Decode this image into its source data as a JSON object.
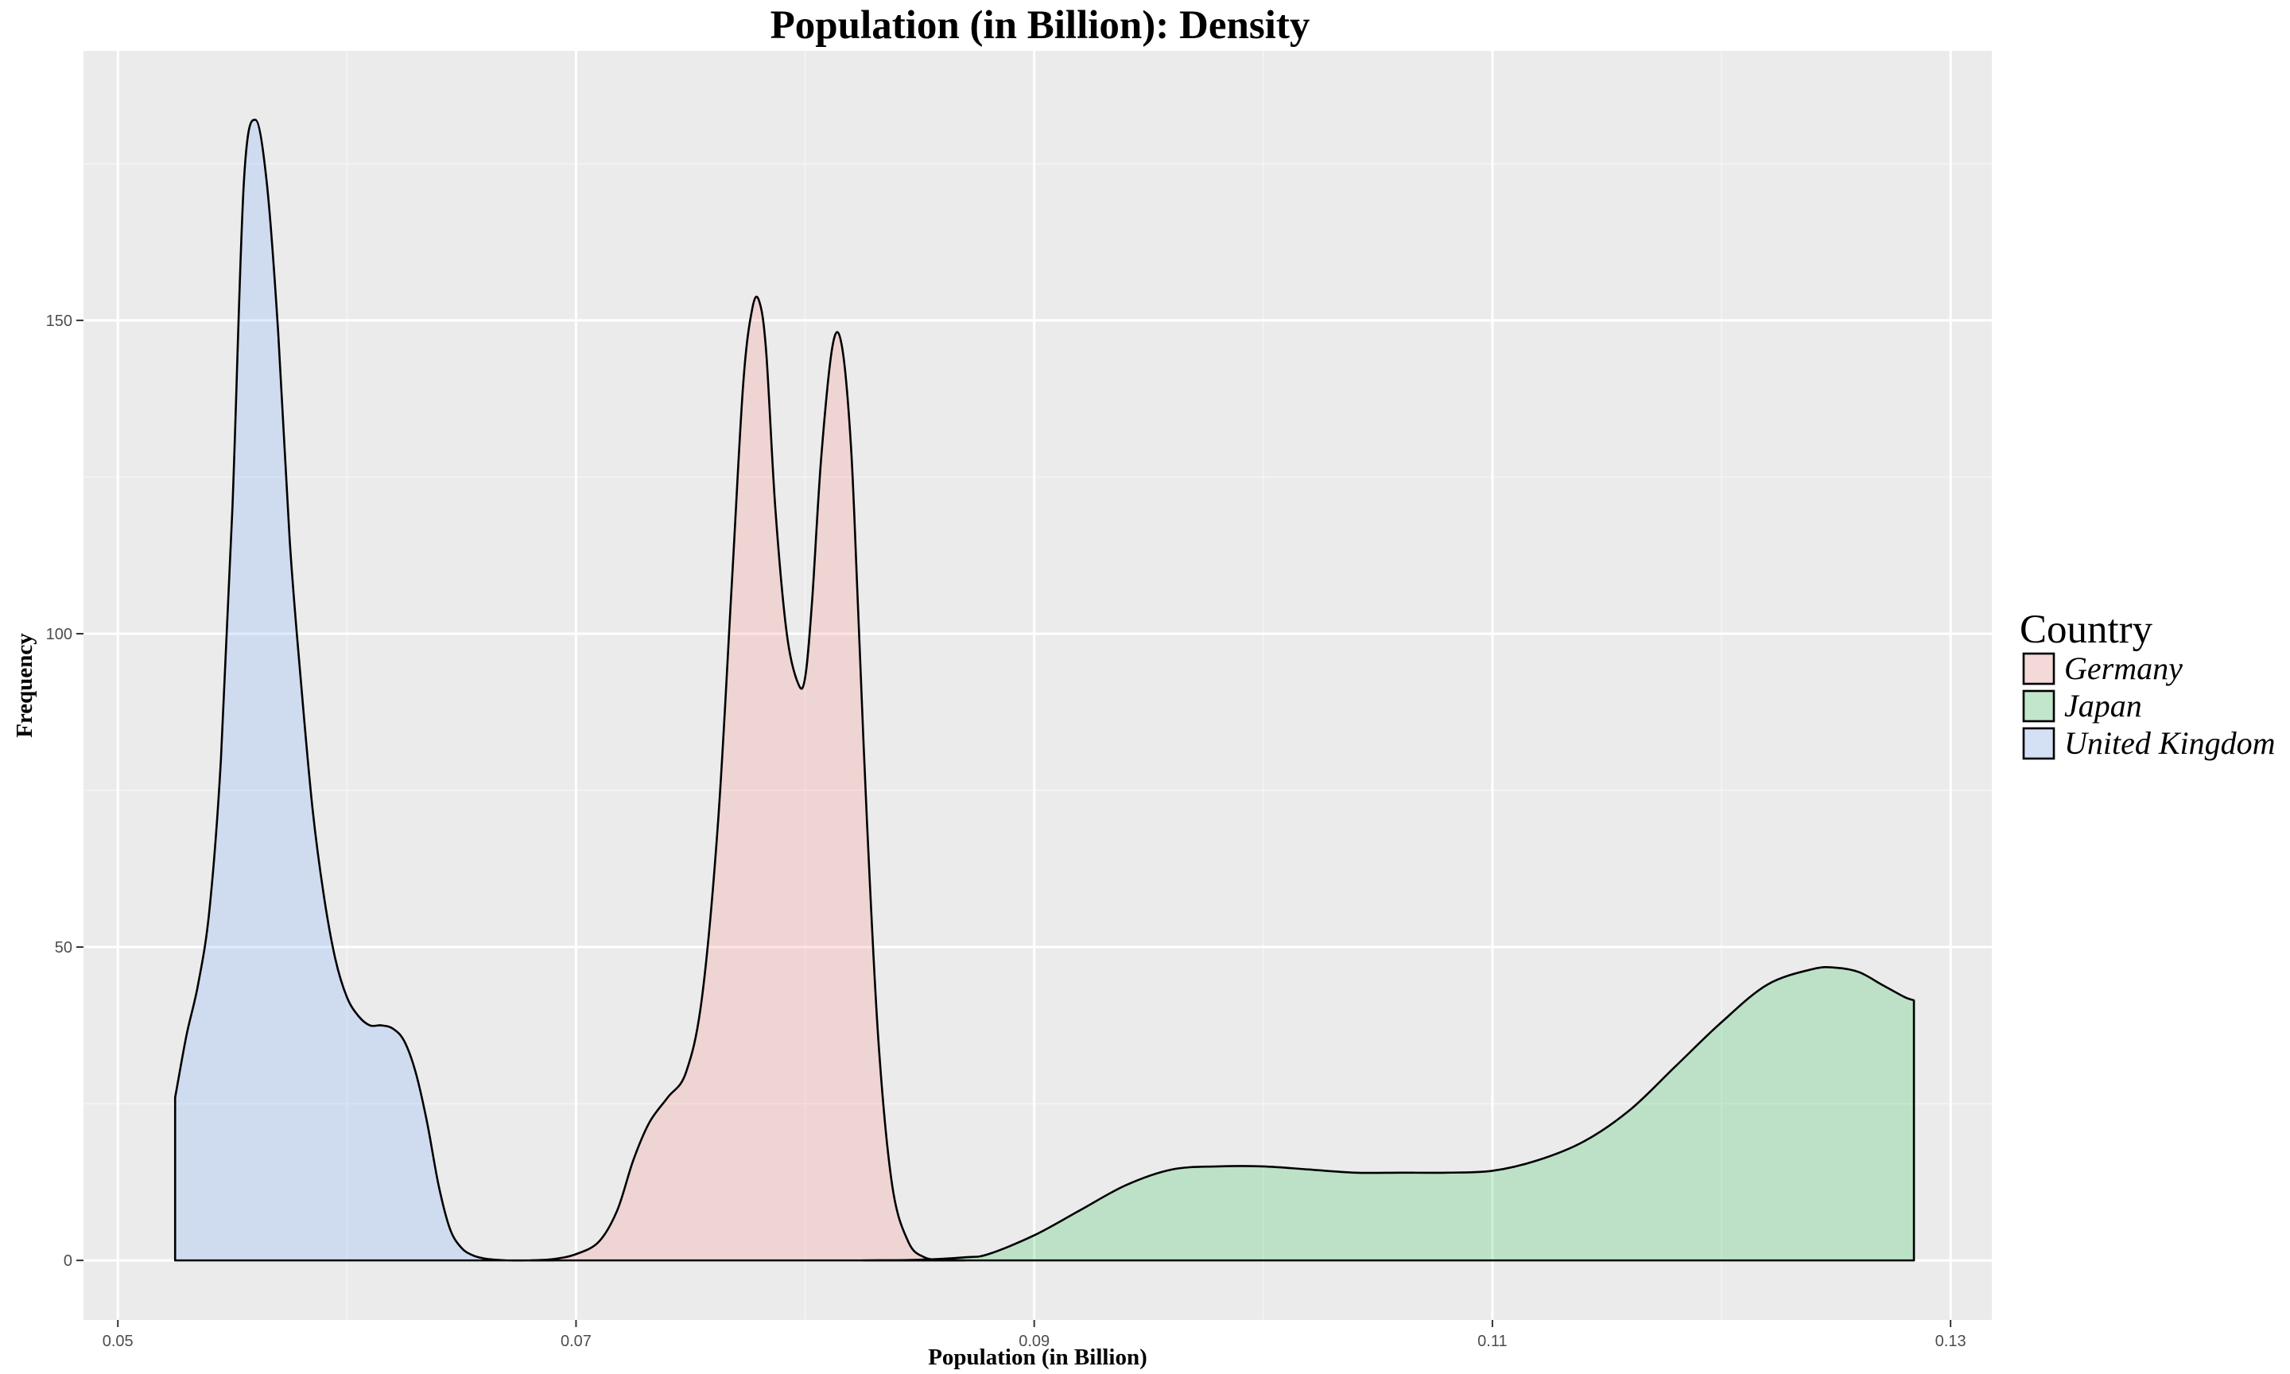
{
  "chart_data": {
    "type": "area",
    "title": "Population (in Billion): Density",
    "xlabel": "Population (in Billion)",
    "ylabel": "Frequency",
    "xlim": [
      0.0485,
      0.1318
    ],
    "ylim": [
      -9.5,
      193
    ],
    "x_ticks": [
      0.05,
      0.07,
      0.09,
      0.11,
      0.13
    ],
    "x_tick_labels": [
      "0.05",
      "0.07",
      "0.09",
      "0.11",
      "0.13"
    ],
    "y_ticks": [
      0,
      50,
      100,
      150
    ],
    "y_tick_labels": [
      "0",
      "50",
      "100",
      "150"
    ],
    "grid": true,
    "legend": {
      "title": "Country",
      "placement": "right"
    },
    "series": [
      {
        "name": "Germany",
        "color": "#F8766D",
        "x": [
          0.068,
          0.069,
          0.07,
          0.071,
          0.0718,
          0.0725,
          0.0732,
          0.074,
          0.0748,
          0.0755,
          0.0762,
          0.0768,
          0.0773,
          0.0777,
          0.078,
          0.0783,
          0.0787,
          0.0792,
          0.0797,
          0.08,
          0.0803,
          0.0807,
          0.0812,
          0.0816,
          0.082,
          0.0823,
          0.0827,
          0.0832,
          0.0838,
          0.0845,
          0.0852,
          0.086,
          0.087
        ],
        "y": [
          0,
          0.2,
          1,
          3,
          8,
          16,
          22,
          26,
          30,
          42,
          70,
          108,
          140,
          152,
          153,
          145,
          120,
          100,
          92,
          93,
          105,
          128,
          146,
          146,
          130,
          105,
          70,
          35,
          12,
          3,
          0.5,
          0.1,
          0
        ]
      },
      {
        "name": "Japan",
        "color": "#00BA38",
        "x": [
          0.0825,
          0.085,
          0.087,
          0.088,
          0.09,
          0.092,
          0.094,
          0.096,
          0.098,
          0.1,
          0.102,
          0.104,
          0.106,
          0.108,
          0.11,
          0.112,
          0.114,
          0.116,
          0.118,
          0.12,
          0.122,
          0.124,
          0.125,
          0.126,
          0.127,
          0.128,
          0.1284,
          0.1284
        ],
        "y": [
          0,
          0.1,
          0.5,
          1,
          4,
          8,
          12,
          14.5,
          15,
          15,
          14.5,
          14,
          14,
          14,
          14.3,
          16,
          19,
          24,
          31,
          38,
          44,
          46.5,
          46.7,
          46,
          44,
          42,
          41.5,
          0
        ]
      },
      {
        "name": "United Kingdom",
        "color": "#619CFF",
        "x": [
          0.0525,
          0.0525,
          0.053,
          0.0535,
          0.054,
          0.0545,
          0.055,
          0.0555,
          0.056,
          0.0565,
          0.057,
          0.0575,
          0.058,
          0.0585,
          0.059,
          0.0595,
          0.06,
          0.0605,
          0.061,
          0.0615,
          0.062,
          0.0625,
          0.063,
          0.0635,
          0.064,
          0.0645,
          0.065,
          0.0655,
          0.066,
          0.0665,
          0.067,
          0.068,
          0.069
        ],
        "y": [
          0,
          26,
          36,
          44,
          56,
          80,
          120,
          172,
          182,
          172,
          148,
          115,
          92,
          72,
          58,
          48,
          42,
          39,
          37.5,
          37.5,
          37,
          35,
          30,
          22,
          12,
          5,
          2,
          0.8,
          0.3,
          0.1,
          0,
          0,
          0
        ]
      }
    ]
  }
}
